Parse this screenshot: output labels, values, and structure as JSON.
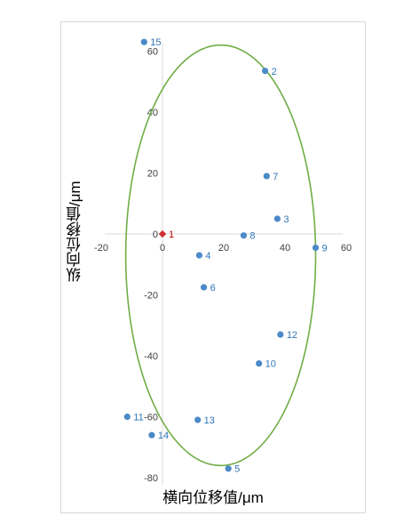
{
  "chart_data": {
    "type": "scatter",
    "xlabel": "横向位移值/μm",
    "ylabel": "纵向位移值/μm",
    "xlim": [
      -20,
      60
    ],
    "ylim": [
      -80,
      60
    ],
    "x_ticks": [
      "-20",
      "0",
      "20",
      "40",
      "60"
    ],
    "y_ticks": [
      "60",
      "40",
      "20",
      "0",
      "-20",
      "-40",
      "-60",
      "-80"
    ],
    "grid": false,
    "legend": "none",
    "colors": {
      "points": "#4a8ac8",
      "highlight": "#d03030",
      "ellipse": "#70ad47",
      "axis": "#d9d9d9"
    },
    "ellipse": {
      "center_x": 19,
      "center_y": -7,
      "radius_x": 31,
      "radius_y": 69
    },
    "points": [
      {
        "label": "1",
        "x": 0,
        "y": 0,
        "highlight": true
      },
      {
        "label": "2",
        "x": 33.5,
        "y": 53.5
      },
      {
        "label": "3",
        "x": 37.5,
        "y": 5
      },
      {
        "label": "4",
        "x": 12,
        "y": -7
      },
      {
        "label": "5",
        "x": 21.5,
        "y": -77
      },
      {
        "label": "6",
        "x": 13.5,
        "y": -17.5
      },
      {
        "label": "7",
        "x": 34,
        "y": 19
      },
      {
        "label": "8",
        "x": 26.5,
        "y": -0.5
      },
      {
        "label": "9",
        "x": 50,
        "y": -4.5
      },
      {
        "label": "10",
        "x": 31.5,
        "y": -42.5
      },
      {
        "label": "11",
        "x": -11.5,
        "y": -60
      },
      {
        "label": "12",
        "x": 38.5,
        "y": -33
      },
      {
        "label": "13",
        "x": 11.5,
        "y": -61
      },
      {
        "label": "14",
        "x": -3.5,
        "y": -66
      },
      {
        "label": "15",
        "x": -6,
        "y": 63
      }
    ]
  }
}
